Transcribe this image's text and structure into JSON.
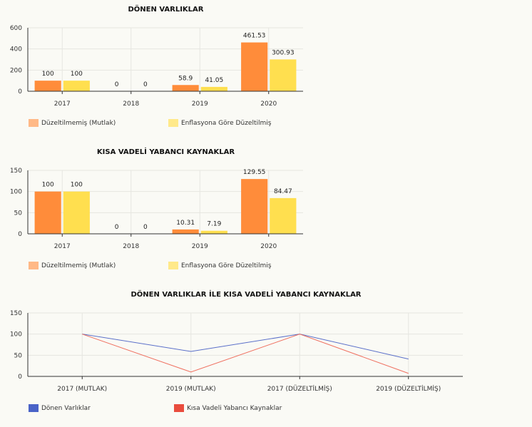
{
  "chart_data": [
    {
      "type": "bar",
      "title": "DÖNEN VARLIKLAR",
      "categories": [
        "2017",
        "2018",
        "2019",
        "2020"
      ],
      "series": [
        {
          "name": "Düzeltilmemiş (Mutlak)",
          "values": [
            100,
            0,
            58.9,
            461.53
          ],
          "labels": [
            "100",
            "0",
            "58.9",
            "461.53"
          ]
        },
        {
          "name": "Enflasyona Göre Düzeltilmiş",
          "values": [
            100,
            0,
            41.05,
            300.93
          ],
          "labels": [
            "100",
            "0",
            "41.05",
            "300.93"
          ]
        }
      ],
      "ylim": [
        0,
        600
      ],
      "yticks": [
        "0",
        "200",
        "400",
        "600"
      ],
      "ytick_values": [
        0,
        200,
        400,
        600
      ],
      "legend_position": "bottom-left"
    },
    {
      "type": "bar",
      "title": "KISA VADELİ YABANCI KAYNAKLAR",
      "categories": [
        "2017",
        "2018",
        "2019",
        "2020"
      ],
      "series": [
        {
          "name": "Düzeltilmemiş (Mutlak)",
          "values": [
            100,
            0,
            10.31,
            129.55
          ],
          "labels": [
            "100",
            "0",
            "10.31",
            "129.55"
          ]
        },
        {
          "name": "Enflasyona Göre Düzeltilmiş",
          "values": [
            100,
            0,
            7.19,
            84.47
          ],
          "labels": [
            "100",
            "0",
            "7.19",
            "84.47"
          ]
        }
      ],
      "ylim": [
        0,
        150
      ],
      "yticks": [
        "0",
        "50",
        "100",
        "150"
      ],
      "ytick_values": [
        0,
        50,
        100,
        150
      ],
      "legend_position": "bottom-left"
    },
    {
      "type": "line",
      "title": "DÖNEN VARLIKLAR İLE KISA VADELİ YABANCI KAYNAKLAR",
      "categories": [
        "2017 (MUTLAK)",
        "2019 (MUTLAK)",
        "2017 (DÜZELTİLMİŞ)",
        "2019 (DÜZELTİLMİŞ)"
      ],
      "series": [
        {
          "name": "Dönen Varlıklar",
          "values": [
            100,
            58.9,
            100,
            41.05
          ]
        },
        {
          "name": "Kısa Vadeli Yabancı Kaynaklar",
          "values": [
            100,
            10.31,
            100,
            7.19
          ]
        }
      ],
      "ylim": [
        0,
        150
      ],
      "yticks": [
        "0",
        "50",
        "100",
        "150"
      ],
      "ytick_values": [
        0,
        50,
        100,
        150
      ],
      "legend_position": "bottom-left"
    }
  ],
  "colors": {
    "bar_series_1": "#ff8c3a",
    "bar_series_2": "#ffdf4f",
    "legend_swatch_1": "#ffb987",
    "legend_swatch_2": "#ffe98a",
    "line_series_1": "#5a6fc9",
    "line_series_2": "#ef6f5f",
    "legend_line_1": "#4a63c7",
    "legend_line_2": "#e94c3d",
    "grid": "#e6e6e0",
    "axis": "#333333"
  }
}
